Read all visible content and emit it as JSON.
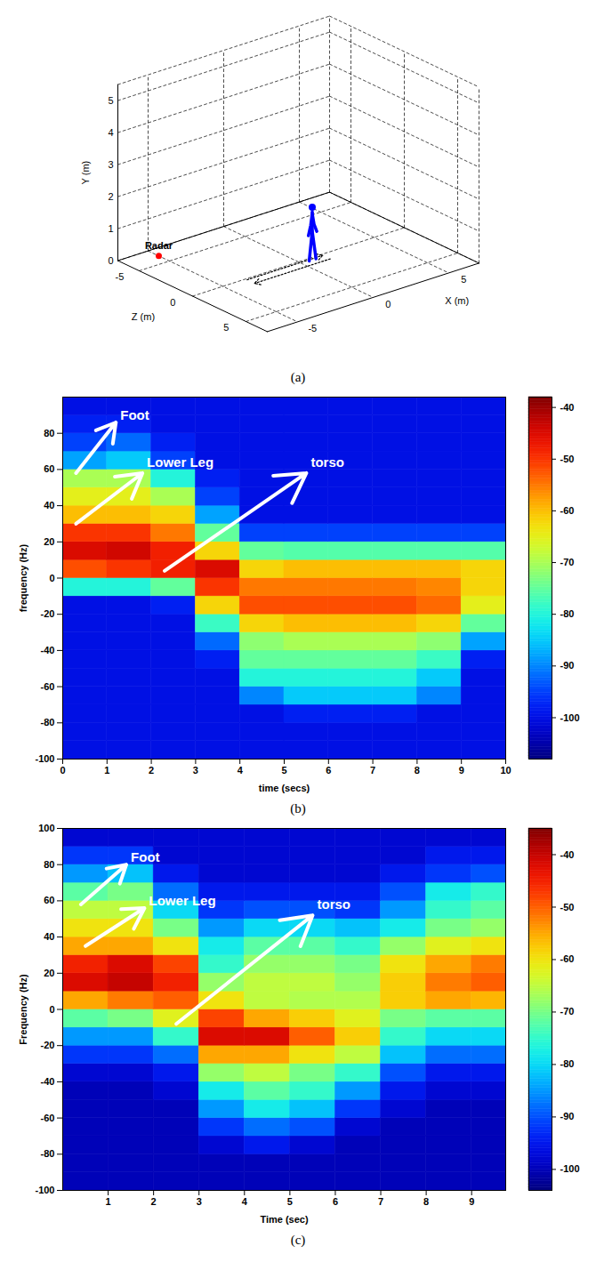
{
  "chart_data": [
    {
      "type": "scene3d",
      "caption": "(a)",
      "xlabel": "X (m)",
      "ylabel": "Y (m)",
      "zlabel": "Z (m)",
      "xlim": [
        -7,
        7
      ],
      "xticks": [
        -5,
        0,
        5
      ],
      "ylim": [
        0,
        5.5
      ],
      "yticks": [
        0,
        1,
        2,
        3,
        4,
        5
      ],
      "zlim": [
        -7,
        7
      ],
      "zticks": [
        -5,
        0,
        5
      ],
      "grid": true,
      "radar": {
        "label": "Radar",
        "x": -5,
        "y": 0,
        "z": -6,
        "color": "#ff0000"
      },
      "walker": {
        "x": 0.7,
        "z": 0.3,
        "color": "#0000ff"
      },
      "path": {
        "x": [
          -3.5,
          1.5
        ],
        "z": 0.5
      }
    },
    {
      "type": "heatmap",
      "caption": "(b)",
      "xlabel": "time (secs)",
      "ylabel": "frequency (Hz)",
      "xlim": [
        0,
        10
      ],
      "xticks": [
        0,
        1,
        2,
        3,
        4,
        5,
        6,
        7,
        8,
        9,
        10
      ],
      "ylim": [
        -100,
        100
      ],
      "yticks": [
        -100,
        -80,
        -60,
        -40,
        -20,
        0,
        20,
        40,
        60,
        80
      ],
      "annotations": [
        "Foot",
        "Lower Leg",
        "torso"
      ],
      "time_edges": [
        0,
        1,
        2,
        3,
        4,
        5,
        6,
        7,
        8,
        9,
        10
      ],
      "frequency_edges": [
        -100,
        -90,
        -80,
        -70,
        -60,
        -50,
        -40,
        -30,
        -20,
        -10,
        0,
        10,
        20,
        30,
        40,
        50,
        60,
        70,
        80,
        90,
        100
      ],
      "cells": [
        [
          -100,
          -100,
          -100,
          -100,
          -100,
          -100,
          -100,
          -100,
          -100,
          -100
        ],
        [
          -100,
          -100,
          -100,
          -100,
          -100,
          -100,
          -100,
          -100,
          -100,
          -100
        ],
        [
          -100,
          -100,
          -100,
          -100,
          -100,
          -98,
          -98,
          -98,
          -100,
          -100
        ],
        [
          -100,
          -100,
          -100,
          -100,
          -90,
          -85,
          -85,
          -85,
          -90,
          -100
        ],
        [
          -100,
          -100,
          -100,
          -100,
          -80,
          -80,
          -80,
          -80,
          -85,
          -100
        ],
        [
          -100,
          -100,
          -100,
          -98,
          -75,
          -75,
          -75,
          -75,
          -78,
          -98
        ],
        [
          -100,
          -100,
          -100,
          -92,
          -72,
          -70,
          -70,
          -70,
          -72,
          -88
        ],
        [
          -100,
          -100,
          -100,
          -78,
          -62,
          -60,
          -60,
          -60,
          -62,
          -75
        ],
        [
          -100,
          -100,
          -98,
          -62,
          -52,
          -52,
          -52,
          -52,
          -54,
          -65
        ],
        [
          -80,
          -80,
          -75,
          -50,
          -55,
          -55,
          -55,
          -55,
          -56,
          -62
        ],
        [
          -52,
          -50,
          -48,
          -45,
          -62,
          -60,
          -60,
          -60,
          -60,
          -62
        ],
        [
          -45,
          -44,
          -48,
          -62,
          -75,
          -76,
          -76,
          -76,
          -76,
          -76
        ],
        [
          -50,
          -50,
          -55,
          -75,
          -95,
          -95,
          -95,
          -95,
          -95,
          -95
        ],
        [
          -60,
          -60,
          -62,
          -88,
          -100,
          -100,
          -100,
          -100,
          -100,
          -100
        ],
        [
          -65,
          -65,
          -70,
          -95,
          -100,
          -100,
          -100,
          -100,
          -100,
          -100
        ],
        [
          -70,
          -70,
          -80,
          -98,
          -100,
          -100,
          -100,
          -100,
          -100,
          -100
        ],
        [
          -88,
          -85,
          -95,
          -100,
          -100,
          -100,
          -100,
          -100,
          -100,
          -100
        ],
        [
          -95,
          -92,
          -98,
          -100,
          -100,
          -100,
          -100,
          -100,
          -100,
          -100
        ],
        [
          -98,
          -98,
          -100,
          -100,
          -100,
          -100,
          -100,
          -100,
          -100,
          -100
        ],
        [
          -100,
          -100,
          -100,
          -100,
          -100,
          -100,
          -100,
          -100,
          -100,
          -100
        ]
      ],
      "colorbar": {
        "lim": [
          -108,
          -38
        ],
        "ticks": [
          -100,
          -90,
          -80,
          -70,
          -60,
          -50,
          -40
        ]
      }
    },
    {
      "type": "heatmap",
      "caption": "(c)",
      "xlabel": "Time (sec)",
      "ylabel": "Frequency (Hz)",
      "xlim": [
        0,
        9.75
      ],
      "xticks": [
        1,
        2,
        3,
        4,
        5,
        6,
        7,
        8,
        9
      ],
      "ylim": [
        -100,
        100
      ],
      "yticks": [
        -100,
        -80,
        -60,
        -40,
        -20,
        0,
        20,
        40,
        60,
        80,
        100
      ],
      "annotations": [
        "Foot",
        "Lower Leg",
        "torso"
      ],
      "time_edges": [
        0,
        1,
        2,
        3,
        4,
        5,
        6,
        7,
        8,
        9,
        9.75
      ],
      "frequency_edges": [
        -100,
        -90,
        -80,
        -70,
        -60,
        -50,
        -40,
        -30,
        -20,
        -10,
        0,
        10,
        20,
        30,
        40,
        50,
        60,
        70,
        80,
        90,
        100
      ],
      "cells": [
        [
          -100,
          -100,
          -100,
          -100,
          -100,
          -100,
          -100,
          -100,
          -100,
          -100
        ],
        [
          -100,
          -100,
          -100,
          -100,
          -100,
          -100,
          -100,
          -100,
          -100,
          -100
        ],
        [
          -100,
          -100,
          -100,
          -98,
          -95,
          -98,
          -100,
          -100,
          -100,
          -100
        ],
        [
          -100,
          -100,
          -100,
          -92,
          -88,
          -90,
          -98,
          -100,
          -100,
          -100
        ],
        [
          -100,
          -100,
          -100,
          -85,
          -78,
          -82,
          -92,
          -98,
          -100,
          -100
        ],
        [
          -100,
          -100,
          -98,
          -78,
          -72,
          -75,
          -85,
          -95,
          -98,
          -98
        ],
        [
          -98,
          -98,
          -95,
          -68,
          -65,
          -70,
          -75,
          -90,
          -95,
          -95
        ],
        [
          -92,
          -92,
          -88,
          -55,
          -55,
          -60,
          -65,
          -82,
          -88,
          -88
        ],
        [
          -85,
          -85,
          -75,
          -42,
          -42,
          -50,
          -58,
          -75,
          -80,
          -80
        ],
        [
          -72,
          -70,
          -62,
          -48,
          -55,
          -58,
          -62,
          -70,
          -72,
          -72
        ],
        [
          -55,
          -52,
          -50,
          -60,
          -65,
          -66,
          -66,
          -58,
          -55,
          -56
        ],
        [
          -42,
          -40,
          -45,
          -68,
          -65,
          -65,
          -68,
          -58,
          -52,
          -50
        ],
        [
          -45,
          -42,
          -48,
          -75,
          -68,
          -68,
          -70,
          -60,
          -55,
          -52
        ],
        [
          -55,
          -55,
          -60,
          -78,
          -72,
          -72,
          -75,
          -68,
          -62,
          -60
        ],
        [
          -60,
          -60,
          -70,
          -85,
          -80,
          -80,
          -82,
          -78,
          -70,
          -68
        ],
        [
          -65,
          -65,
          -80,
          -92,
          -90,
          -90,
          -92,
          -85,
          -75,
          -72
        ],
        [
          -72,
          -70,
          -88,
          -95,
          -95,
          -95,
          -95,
          -90,
          -78,
          -75
        ],
        [
          -85,
          -82,
          -95,
          -98,
          -98,
          -98,
          -98,
          -95,
          -92,
          -90
        ],
        [
          -92,
          -92,
          -98,
          -98,
          -98,
          -98,
          -98,
          -98,
          -95,
          -95
        ],
        [
          -98,
          -98,
          -98,
          -98,
          -98,
          -98,
          -98,
          -98,
          -98,
          -98
        ]
      ],
      "colorbar": {
        "lim": [
          -104,
          -35
        ],
        "ticks": [
          -100,
          -90,
          -80,
          -70,
          -60,
          -50,
          -40
        ]
      }
    }
  ]
}
